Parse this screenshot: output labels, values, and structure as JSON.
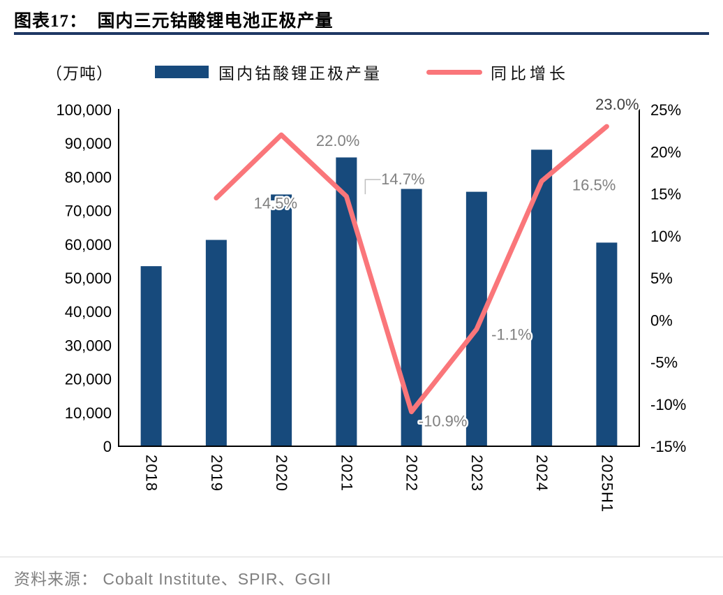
{
  "header": {
    "title": "图表17：  国内三元钴酸锂电池正极产量"
  },
  "legend": {
    "unit_label": "（万吨）",
    "bar_label": "国内钴酸锂正极产量",
    "line_label": "同比增长"
  },
  "chart_data": {
    "type": "bar+line combo",
    "title": "国内三元钴酸锂电池正极产量",
    "unit": "万吨",
    "categories": [
      "2018",
      "2019",
      "2020",
      "2021",
      "2022",
      "2023",
      "2024",
      "2025H1"
    ],
    "series": [
      {
        "name": "国内钴酸锂正极产量",
        "type": "bar",
        "axis": "left",
        "values": [
          53500,
          61300,
          74800,
          85800,
          76450,
          75600,
          88100,
          60500
        ]
      },
      {
        "name": "同比增长",
        "type": "line",
        "axis": "right",
        "values": [
          null,
          14.5,
          22.0,
          14.7,
          -10.9,
          -1.1,
          16.5,
          23.0
        ],
        "point_labels": [
          null,
          "14.5%",
          "22.0%",
          "14.7%",
          "-10.9%",
          "-1.1%",
          "16.5%",
          "23.0%"
        ]
      }
    ],
    "left_axis": {
      "min": 0,
      "max": 100000,
      "tick_labels": [
        "100,000",
        "90,000",
        "80,000",
        "70,000",
        "60,000",
        "50,000",
        "40,000",
        "30,000",
        "20,000",
        "10,000",
        "0"
      ]
    },
    "right_axis": {
      "min": -15,
      "max": 25,
      "tick_labels": [
        "25%",
        "20%",
        "15%",
        "10%",
        "5%",
        "0%",
        "-5%",
        "-10%",
        "-15%"
      ]
    },
    "grid": false,
    "legend_position": "top",
    "colors": {
      "bar": "#174a7c",
      "line": "#fa767a",
      "title_rule": "#1f3864",
      "data_label": "#808080",
      "last_data_label": "#404040",
      "axis": "#000000",
      "leader": "#bfbfbf"
    }
  },
  "footer": {
    "source": "资料来源： Cobalt Institute、SPIR、GGII"
  }
}
